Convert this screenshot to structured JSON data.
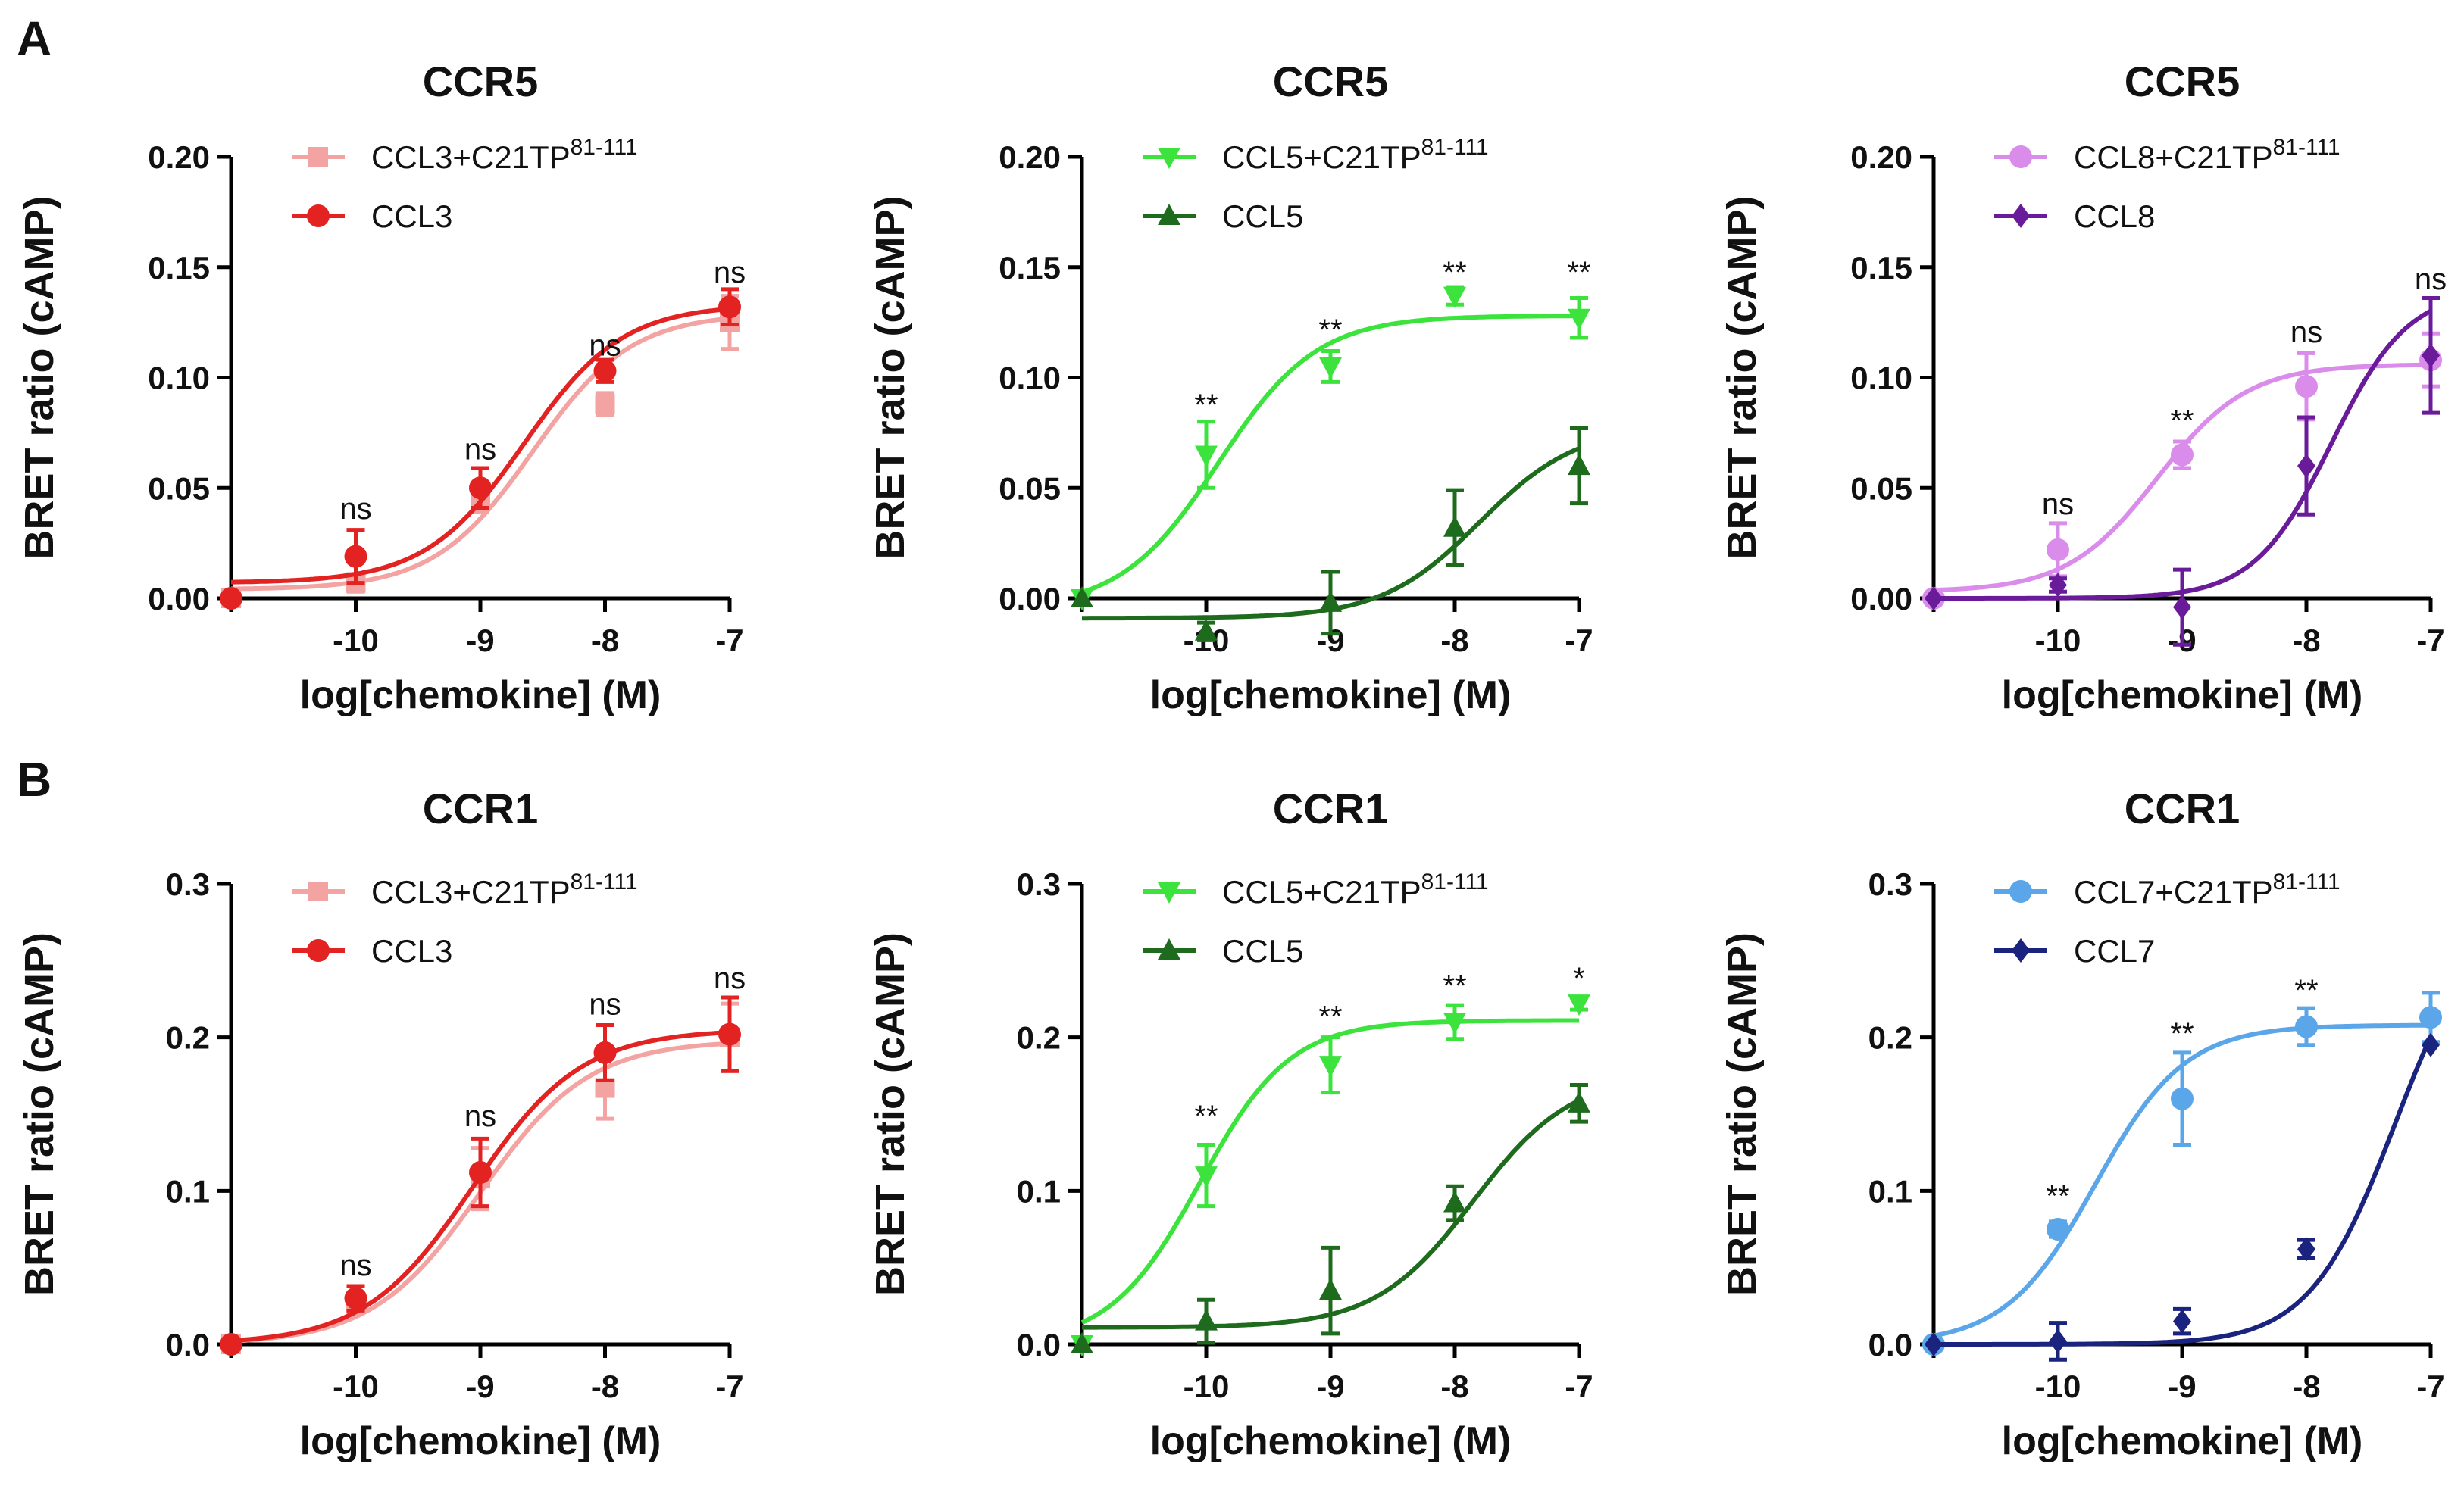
{
  "panel_labels": [
    "A",
    "B"
  ],
  "colors": {
    "ccl3_tp": "#F4A3A3",
    "ccl3": "#E32222",
    "ccl5_tp": "#3CE33C",
    "ccl5": "#1E6B1E",
    "ccl8_tp": "#DA8CEB",
    "ccl8": "#6A1B9A",
    "ccl7_tp": "#5AA6E8",
    "ccl7": "#1A237E"
  },
  "chart_data": [
    {
      "type": "line",
      "panel": "A",
      "title": "CCR5",
      "xlabel": "log[chemokine] (M)",
      "ylabel": "BRET ratio  (cAMP)",
      "xlim": [
        -11,
        -7
      ],
      "ylim": [
        0,
        0.2
      ],
      "xticks": [
        -11,
        -10,
        -9,
        -8,
        -7
      ],
      "xticklabels": [
        "",
        "-10",
        "-9",
        "-8",
        "-7"
      ],
      "yticks": [
        0,
        0.05,
        0.1,
        0.15,
        0.2
      ],
      "yticklabels": [
        "0.00",
        "0.05",
        "0.10",
        "0.15",
        "0.20"
      ],
      "legend": "top-left",
      "series": [
        {
          "name": "CCL3+C21TP",
          "sup": "81-111",
          "color": "#F4A3A3",
          "marker": "square",
          "x": [
            -11,
            -10,
            -9,
            -8,
            -7
          ],
          "y": [
            0.0,
            0.007,
            0.045,
            0.088,
            0.125
          ],
          "err": [
            0.0,
            0.004,
            0.006,
            0.005,
            0.012
          ],
          "curve": {
            "bottom": 0.004,
            "top": 0.129,
            "logec50": -8.58,
            "hill": 1.1
          }
        },
        {
          "name": "CCL3",
          "sup": "",
          "color": "#E32222",
          "marker": "circle",
          "x": [
            -11,
            -10,
            -9,
            -8,
            -7
          ],
          "y": [
            0.0,
            0.019,
            0.05,
            0.103,
            0.132
          ],
          "err": [
            0.0,
            0.012,
            0.009,
            0.005,
            0.008
          ],
          "curve": {
            "bottom": 0.007,
            "top": 0.133,
            "logec50": -8.65,
            "hill": 1.1
          }
        }
      ],
      "annotations": [
        {
          "x": -10,
          "y": 0.036,
          "text": "ns"
        },
        {
          "x": -9,
          "y": 0.063,
          "text": "ns"
        },
        {
          "x": -8,
          "y": 0.11,
          "text": "ns"
        },
        {
          "x": -7,
          "y": 0.143,
          "text": "ns"
        }
      ]
    },
    {
      "type": "line",
      "panel": "A",
      "title": "CCR5",
      "xlabel": "log[chemokine] (M)",
      "ylabel": "BRET ratio  (cAMP)",
      "xlim": [
        -11,
        -7
      ],
      "ylim": [
        0,
        0.2
      ],
      "xticks": [
        -11,
        -10,
        -9,
        -8,
        -7
      ],
      "xticklabels": [
        "",
        "-10",
        "-9",
        "-8",
        "-7"
      ],
      "yticks": [
        0,
        0.05,
        0.1,
        0.15,
        0.2
      ],
      "yticklabels": [
        "0.00",
        "0.05",
        "0.10",
        "0.15",
        "0.20"
      ],
      "legend": "top-left",
      "series": [
        {
          "name": "CCL5+C21TP",
          "sup": "81-111",
          "color": "#3CE33C",
          "marker": "triangle-down",
          "x": [
            -11,
            -10,
            -9,
            -8,
            -7
          ],
          "y": [
            0.0,
            0.065,
            0.105,
            0.137,
            0.127
          ],
          "err": [
            0.0,
            0.015,
            0.007,
            0.004,
            0.009
          ],
          "curve": {
            "bottom": -0.005,
            "top": 0.128,
            "logec50": -9.9,
            "hill": 1.1
          }
        },
        {
          "name": "CCL5",
          "sup": "",
          "color": "#1E6B1E",
          "marker": "triangle-up",
          "x": [
            -11,
            -10,
            -9,
            -8,
            -7
          ],
          "y": [
            0.0,
            -0.015,
            -0.002,
            0.032,
            0.06
          ],
          "err": [
            0.0,
            0.004,
            0.014,
            0.017,
            0.017
          ],
          "curve": {
            "bottom": -0.009,
            "top": 0.078,
            "logec50": -7.8,
            "hill": 1.1
          }
        }
      ],
      "annotations": [
        {
          "x": -10,
          "y": 0.083,
          "text": "**"
        },
        {
          "x": -9,
          "y": 0.117,
          "text": "**"
        },
        {
          "x": -8,
          "y": 0.143,
          "text": "**"
        },
        {
          "x": -7,
          "y": 0.143,
          "text": "**"
        }
      ]
    },
    {
      "type": "line",
      "panel": "A",
      "title": "CCR5",
      "xlabel": "log[chemokine] (M)",
      "ylabel": "BRET ratio  (cAMP)",
      "xlim": [
        -11,
        -7
      ],
      "ylim": [
        0,
        0.2
      ],
      "xticks": [
        -11,
        -10,
        -9,
        -8,
        -7
      ],
      "xticklabels": [
        "",
        "-10",
        "-9",
        "-8",
        "-7"
      ],
      "yticks": [
        0,
        0.05,
        0.1,
        0.15,
        0.2
      ],
      "yticklabels": [
        "0.00",
        "0.05",
        "0.10",
        "0.15",
        "0.20"
      ],
      "legend": "top-left",
      "series": [
        {
          "name": "CCL8+C21TP",
          "sup": "81-111",
          "color": "#DA8CEB",
          "marker": "circle",
          "x": [
            -11,
            -10,
            -9,
            -8,
            -7
          ],
          "y": [
            0.0,
            0.022,
            0.065,
            0.096,
            0.108
          ],
          "err": [
            0.0,
            0.012,
            0.006,
            0.015,
            0.012
          ],
          "curve": {
            "bottom": 0.003,
            "top": 0.106,
            "logec50": -9.2,
            "hill": 1.2
          }
        },
        {
          "name": "CCL8",
          "sup": "",
          "color": "#6A1B9A",
          "marker": "diamond",
          "x": [
            -11,
            -10,
            -9,
            -8,
            -7
          ],
          "y": [
            0.0,
            0.006,
            -0.004,
            0.06,
            0.11
          ],
          "err": [
            0.0,
            0.003,
            0.017,
            0.022,
            0.026
          ],
          "curve": {
            "bottom": 0.0,
            "top": 0.14,
            "logec50": -7.8,
            "hill": 1.4
          }
        }
      ],
      "annotations": [
        {
          "x": -10,
          "y": 0.038,
          "text": "ns"
        },
        {
          "x": -9,
          "y": 0.076,
          "text": "**"
        },
        {
          "x": -8,
          "y": 0.116,
          "text": "ns"
        },
        {
          "x": -7,
          "y": 0.14,
          "text": "ns"
        }
      ]
    },
    {
      "type": "line",
      "panel": "B",
      "title": "CCR1",
      "xlabel": "log[chemokine] (M)",
      "ylabel": "BRET ratio  (cAMP)",
      "xlim": [
        -11,
        -7
      ],
      "ylim": [
        0,
        0.3
      ],
      "xticks": [
        -11,
        -10,
        -9,
        -8,
        -7
      ],
      "xticklabels": [
        "",
        "-10",
        "-9",
        "-8",
        "-7"
      ],
      "yticks": [
        0,
        0.1,
        0.2,
        0.3
      ],
      "yticklabels": [
        "0.0",
        "0.1",
        "0.2",
        "0.3"
      ],
      "legend": "top-left",
      "series": [
        {
          "name": "CCL3+C21TP",
          "sup": "81-111",
          "color": "#F4A3A3",
          "marker": "square",
          "x": [
            -11,
            -10,
            -9,
            -8,
            -7
          ],
          "y": [
            0.0,
            0.027,
            0.108,
            0.167,
            0.2
          ],
          "err": [
            0.0,
            0.006,
            0.02,
            0.02,
            0.022
          ],
          "curve": {
            "bottom": 0.0,
            "top": 0.198,
            "logec50": -9.0,
            "hill": 1.0
          }
        },
        {
          "name": "CCL3",
          "sup": "",
          "color": "#E32222",
          "marker": "circle",
          "x": [
            -11,
            -10,
            -9,
            -8,
            -7
          ],
          "y": [
            0.0,
            0.03,
            0.112,
            0.19,
            0.202
          ],
          "err": [
            0.0,
            0.008,
            0.022,
            0.018,
            0.024
          ],
          "curve": {
            "bottom": 0.0,
            "top": 0.205,
            "logec50": -9.06,
            "hill": 1.0
          }
        }
      ],
      "annotations": [
        {
          "x": -10,
          "y": 0.045,
          "text": "ns"
        },
        {
          "x": -9,
          "y": 0.142,
          "text": "ns"
        },
        {
          "x": -8,
          "y": 0.215,
          "text": "ns"
        },
        {
          "x": -7,
          "y": 0.232,
          "text": "ns"
        }
      ]
    },
    {
      "type": "line",
      "panel": "B",
      "title": "CCR1",
      "xlabel": "log[chemokine] (M)",
      "ylabel": "BRET ratio  (cAMP)",
      "xlim": [
        -11,
        -7
      ],
      "ylim": [
        0,
        0.3
      ],
      "xticks": [
        -11,
        -10,
        -9,
        -8,
        -7
      ],
      "xticklabels": [
        "",
        "-10",
        "-9",
        "-8",
        "-7"
      ],
      "yticks": [
        0,
        0.1,
        0.2,
        0.3
      ],
      "yticklabels": [
        "0.0",
        "0.1",
        "0.2",
        "0.3"
      ],
      "legend": "top-left",
      "series": [
        {
          "name": "CCL5+C21TP",
          "sup": "81-111",
          "color": "#3CE33C",
          "marker": "triangle-down",
          "x": [
            -11,
            -10,
            -9,
            -8,
            -7
          ],
          "y": [
            0.0,
            0.11,
            0.182,
            0.21,
            0.222
          ],
          "err": [
            0.0,
            0.02,
            0.018,
            0.011,
            0.004
          ],
          "curve": {
            "bottom": 0.0,
            "top": 0.211,
            "logec50": -10.05,
            "hill": 1.2
          }
        },
        {
          "name": "CCL5",
          "sup": "",
          "color": "#1E6B1E",
          "marker": "triangle-up",
          "x": [
            -11,
            -10,
            -9,
            -8,
            -7
          ],
          "y": [
            0.0,
            0.015,
            0.035,
            0.092,
            0.157
          ],
          "err": [
            0.0,
            0.014,
            0.028,
            0.011,
            0.012
          ],
          "curve": {
            "bottom": 0.011,
            "top": 0.176,
            "logec50": -7.85,
            "hill": 1.1
          }
        }
      ],
      "annotations": [
        {
          "x": -10,
          "y": 0.142,
          "text": "**"
        },
        {
          "x": -9,
          "y": 0.207,
          "text": "**"
        },
        {
          "x": -8,
          "y": 0.227,
          "text": "**"
        },
        {
          "x": -7,
          "y": 0.232,
          "text": "*"
        }
      ]
    },
    {
      "type": "line",
      "panel": "B",
      "title": "CCR1",
      "xlabel": "log[chemokine] (M)",
      "ylabel": "BRET ratio  (cAMP)",
      "xlim": [
        -11,
        -7
      ],
      "ylim": [
        0,
        0.3
      ],
      "xticks": [
        -11,
        -10,
        -9,
        -8,
        -7
      ],
      "xticklabels": [
        "",
        "-10",
        "-9",
        "-8",
        "-7"
      ],
      "yticks": [
        0,
        0.1,
        0.2,
        0.3
      ],
      "yticklabels": [
        "0.0",
        "0.1",
        "0.2",
        "0.3"
      ],
      "legend": "top-left",
      "series": [
        {
          "name": "CCL7+C21TP",
          "sup": "81-111",
          "color": "#5AA6E8",
          "marker": "circle",
          "x": [
            -11,
            -10,
            -9,
            -8,
            -7
          ],
          "y": [
            0.0,
            0.075,
            0.16,
            0.207,
            0.213
          ],
          "err": [
            0.0,
            0.005,
            0.03,
            0.012,
            0.016
          ],
          "curve": {
            "bottom": 0.0,
            "top": 0.208,
            "logec50": -9.7,
            "hill": 1.2
          }
        },
        {
          "name": "CCL7",
          "sup": "",
          "color": "#1A237E",
          "marker": "diamond",
          "x": [
            -11,
            -10,
            -9,
            -8,
            -7
          ],
          "y": [
            0.0,
            0.002,
            0.015,
            0.062,
            0.195
          ],
          "err": [
            0.0,
            0.012,
            0.008,
            0.006,
            0.0
          ],
          "curve": {
            "bottom": 0.0,
            "top": 0.29,
            "logec50": -7.28,
            "hill": 1.25
          }
        }
      ],
      "annotations": [
        {
          "x": -10,
          "y": 0.09,
          "text": "**"
        },
        {
          "x": -9,
          "y": 0.196,
          "text": "**"
        },
        {
          "x": -8,
          "y": 0.224,
          "text": "**"
        }
      ]
    }
  ]
}
